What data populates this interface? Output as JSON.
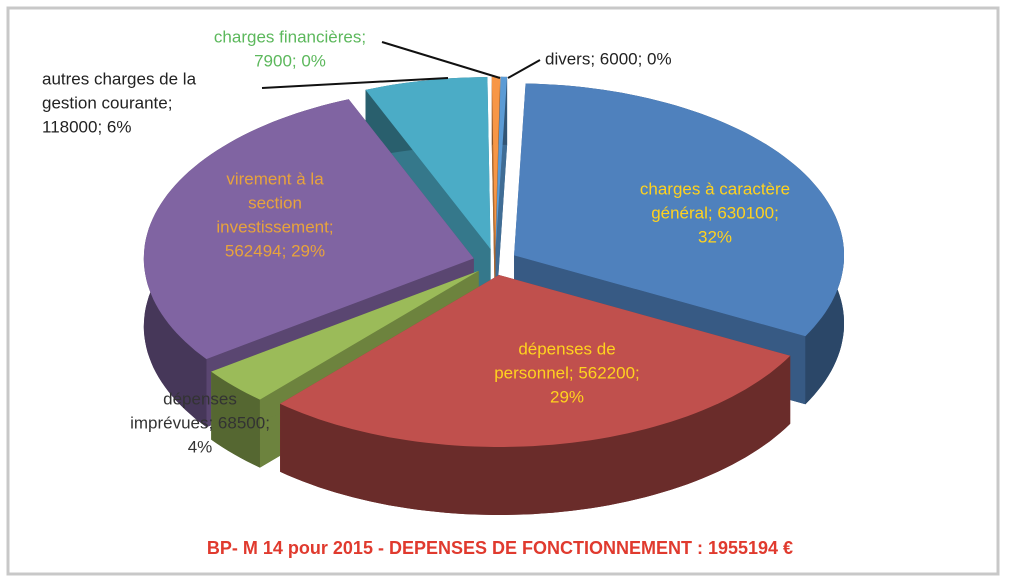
{
  "chart_data": {
    "type": "pie",
    "title": "BP- M 14 pour 2015 - DEPENSES DE FONCTIONNEMENT :  1955194 €",
    "values": [
      630100,
      562200,
      68500,
      562494,
      118000,
      7900,
      6000
    ],
    "value_labels": [
      [
        "charges à caractère",
        "général; 630100;",
        "32%"
      ],
      [
        "dépenses de",
        "personnel; 562200;",
        "29%"
      ],
      [
        "dépenses",
        "imprévues; 68500;",
        "4%"
      ],
      [
        "virement à la",
        "section",
        "investissement;",
        "562494; 29%"
      ],
      [
        "autres charges de la",
        "gestion courante;",
        "118000; 6%"
      ],
      [
        "charges financières;",
        "7900; 0%"
      ],
      [
        "divers; 6000; 0%"
      ]
    ],
    "colors": [
      "#4f81bd",
      "#c0504d",
      "#9bbb59",
      "#8064a2",
      "#4bacc6",
      "#f79646",
      "#5b9bd5"
    ],
    "label_colors": [
      "#ffd21f",
      "#ffd21f",
      "#333333",
      "#e8a33c",
      "#222222",
      "#5cb85c",
      "#222222"
    ]
  }
}
